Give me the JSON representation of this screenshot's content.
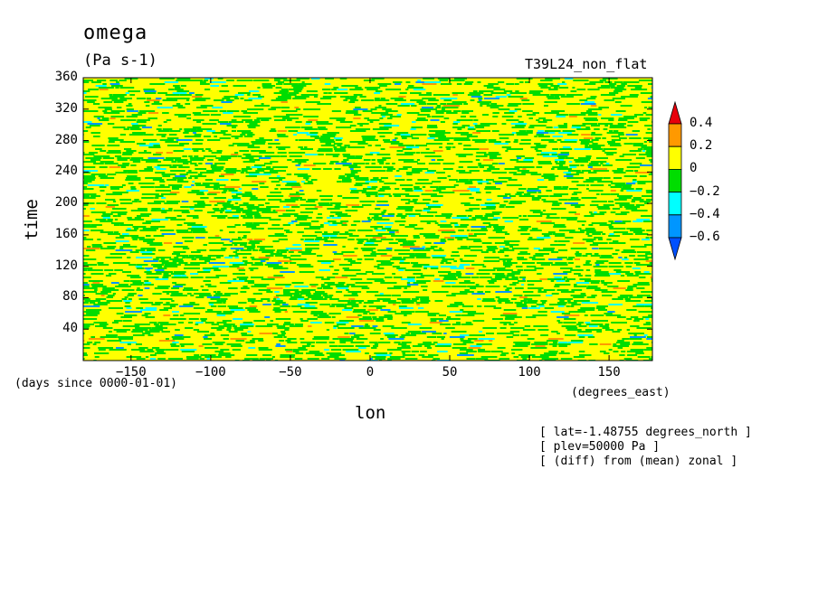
{
  "chart_data": {
    "type": "heatmap",
    "title": "omega",
    "units": "(Pa s-1)",
    "run_label": "T39L24_non_flat",
    "xlabel": "lon",
    "xunits": "(degrees_east)",
    "ylabel": "time",
    "yunits": "(days since 0000-01-01)",
    "xlim": [
      -180,
      177.2
    ],
    "ylim": [
      0,
      360
    ],
    "xticks": [
      -150,
      -100,
      -50,
      0,
      50,
      100,
      150
    ],
    "yticks": [
      40,
      80,
      120,
      160,
      200,
      240,
      280,
      320,
      360
    ],
    "colorbar": {
      "labels": [
        "0.4",
        "0.2",
        "0",
        "-0.2",
        "-0.4",
        "-0.6"
      ],
      "bins": [
        {
          "range": "> 0.4",
          "color": "#e8000b"
        },
        {
          "range": "0.2 to 0.4",
          "color": "#ff9900"
        },
        {
          "range": "0 to 0.2",
          "color": "#ffff00"
        },
        {
          "range": "-0.2 to 0",
          "color": "#00dd00"
        },
        {
          "range": "-0.4 to -0.2",
          "color": "#00ffff"
        },
        {
          "range": "-0.6 to -0.4",
          "color": "#0096ff"
        },
        {
          "range": "< -0.6",
          "color": "#0050ff"
        }
      ]
    },
    "annotations": [
      "[ lat=-1.48755 degrees_north ]",
      "[ plev=50000 Pa ]",
      "[ (diff) from (mean) zonal ]"
    ]
  }
}
